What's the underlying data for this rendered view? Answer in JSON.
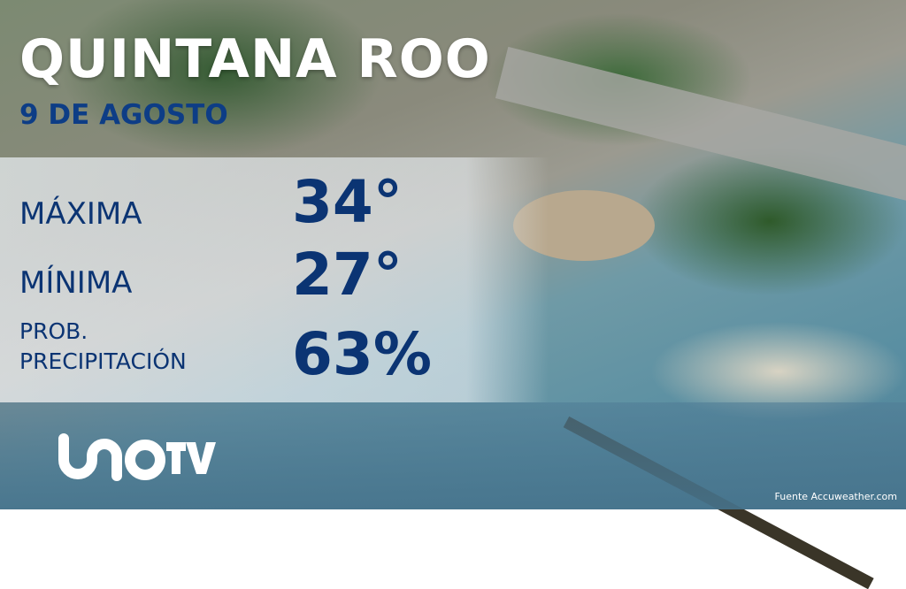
{
  "header": {
    "title": "QUINTANA ROO",
    "date": "9 DE AGOSTO"
  },
  "forecast": {
    "max": {
      "label": "MÁXIMA",
      "value": "34°"
    },
    "min": {
      "label": "MÍNIMA",
      "value": "27°"
    },
    "precip": {
      "label_line1": "PROB.",
      "label_line2": "PRECIPITACIÓN",
      "value": "63%"
    }
  },
  "brand": {
    "logo": "UNO TV"
  },
  "footer": {
    "source": "Fuente Accuweather.com"
  },
  "colors": {
    "accent": "#0b3473",
    "title": "#ffffff"
  }
}
